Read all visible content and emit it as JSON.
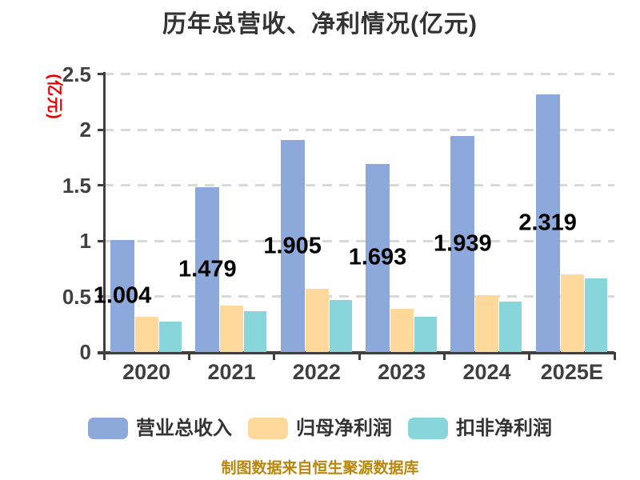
{
  "title": "历年总营收、净利情况(亿元)",
  "y_axis_title": "(亿元)",
  "footer_note": "制图数据来自恒生聚源数据库",
  "chart_data": {
    "type": "bar",
    "title": "历年总营收、净利情况(亿元)",
    "categories": [
      "2020",
      "2021",
      "2022",
      "2023",
      "2024",
      "2025E"
    ],
    "series": [
      {
        "name": "营业总收入",
        "color": "#8da9db",
        "values": [
          1.004,
          1.479,
          1.905,
          1.693,
          1.939,
          2.319
        ],
        "data_labels": [
          "1.004",
          "1.479",
          "1.905",
          "1.693",
          "1.939",
          "2.319"
        ]
      },
      {
        "name": "归母净利润",
        "color": "#ffd99c",
        "values": [
          0.32,
          0.42,
          0.57,
          0.39,
          0.51,
          0.7
        ]
      },
      {
        "name": "扣非净利润",
        "color": "#88d5db",
        "values": [
          0.27,
          0.37,
          0.47,
          0.32,
          0.45,
          0.66
        ]
      }
    ],
    "ylabel": "(亿元)",
    "ylim": [
      0,
      2.5
    ],
    "ytick_labels": [
      "0",
      "0.5",
      "1",
      "1.5",
      "2",
      "2.5"
    ],
    "grid": "horizontal-dashed",
    "legend_position": "bottom"
  },
  "colors": {
    "background": "#ffffff",
    "axis": "#3f3f3f",
    "gridline": "#d9d9d9",
    "title_text": "#333333",
    "tick_text": "#404040",
    "data_label_text": "#000000",
    "y_axis_title_text": "#ee0000",
    "footer_text": "#b8860b"
  }
}
